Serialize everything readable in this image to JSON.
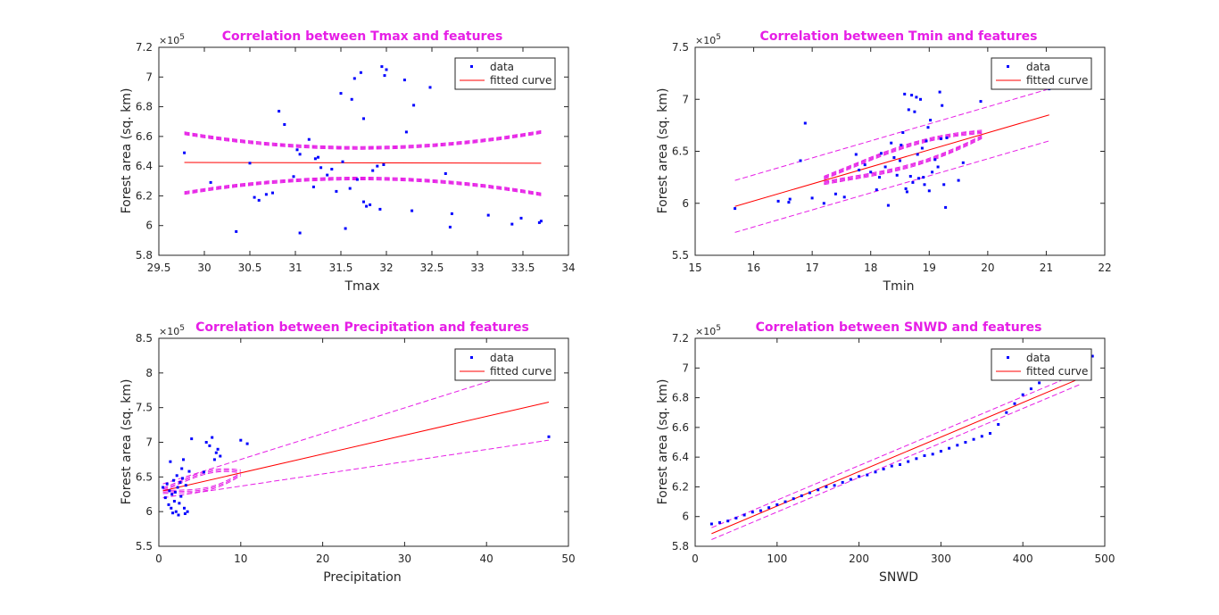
{
  "figure": {
    "background": "#ffffff",
    "title_color": "#e61ee6",
    "data_color": "#0000ff",
    "fit_color": "#ff0000",
    "ci_color": "#e61ee6"
  },
  "chart_data": [
    {
      "id": "tmax",
      "type": "scatter",
      "title": "Correlation between Tmax and features",
      "xlabel": "Tmax",
      "ylabel": "Forest area (sq. km)",
      "exponent_label": "×10",
      "exponent_power": "5",
      "xlim": [
        29.5,
        34
      ],
      "ylim": [
        5.8,
        7.2
      ],
      "xticks": [
        29.5,
        30,
        30.5,
        31,
        31.5,
        32,
        32.5,
        33,
        33.5,
        34
      ],
      "xtick_labels": [
        "29.5",
        "30",
        "30.5",
        "31",
        "31.5",
        "32",
        "32.5",
        "33",
        "33.5",
        "34"
      ],
      "yticks": [
        5.8,
        6,
        6.2,
        6.4,
        6.6,
        6.8,
        7,
        7.2
      ],
      "ytick_labels": [
        "5.8",
        "6",
        "6.2",
        "6.4",
        "6.6",
        "6.8",
        "7",
        "7.2"
      ],
      "legend": {
        "position": "top-right",
        "entries": [
          "data",
          "fitted curve"
        ]
      },
      "points": [
        [
          29.78,
          6.49
        ],
        [
          30.07,
          6.29
        ],
        [
          30.35,
          5.96
        ],
        [
          30.5,
          6.42
        ],
        [
          30.55,
          6.19
        ],
        [
          30.6,
          6.17
        ],
        [
          30.68,
          6.21
        ],
        [
          30.75,
          6.22
        ],
        [
          30.82,
          6.77
        ],
        [
          30.88,
          6.68
        ],
        [
          30.98,
          6.33
        ],
        [
          31.02,
          6.51
        ],
        [
          31.05,
          6.48
        ],
        [
          31.05,
          5.95
        ],
        [
          31.15,
          6.58
        ],
        [
          31.2,
          6.26
        ],
        [
          31.22,
          6.45
        ],
        [
          31.25,
          6.46
        ],
        [
          31.28,
          6.39
        ],
        [
          31.35,
          6.34
        ],
        [
          31.4,
          6.38
        ],
        [
          31.45,
          6.23
        ],
        [
          31.5,
          6.89
        ],
        [
          31.52,
          6.43
        ],
        [
          31.55,
          5.98
        ],
        [
          31.6,
          6.25
        ],
        [
          31.62,
          6.85
        ],
        [
          31.65,
          6.99
        ],
        [
          31.68,
          6.31
        ],
        [
          31.72,
          7.03
        ],
        [
          31.75,
          6.16
        ],
        [
          31.75,
          6.72
        ],
        [
          31.78,
          6.13
        ],
        [
          31.82,
          6.14
        ],
        [
          31.85,
          6.37
        ],
        [
          31.9,
          6.4
        ],
        [
          31.93,
          6.11
        ],
        [
          31.95,
          7.07
        ],
        [
          31.97,
          6.41
        ],
        [
          31.98,
          7.01
        ],
        [
          32.0,
          7.05
        ],
        [
          32.2,
          6.98
        ],
        [
          32.22,
          6.63
        ],
        [
          32.28,
          6.1
        ],
        [
          32.3,
          6.81
        ],
        [
          32.48,
          6.93
        ],
        [
          32.65,
          6.35
        ],
        [
          32.7,
          5.99
        ],
        [
          32.72,
          6.08
        ],
        [
          33.12,
          6.07
        ],
        [
          33.38,
          6.01
        ],
        [
          33.48,
          6.05
        ],
        [
          33.68,
          6.02
        ],
        [
          33.7,
          6.03
        ]
      ],
      "fit": {
        "x": [
          29.78,
          33.7
        ],
        "y": [
          6.425,
          6.42
        ]
      },
      "ci_sets": [
        {
          "center": 31.7,
          "x0": 29.78,
          "x1": 33.7,
          "base": 6.42,
          "half_min": 0.1,
          "curv": 0.0267,
          "offsets": [
            0,
            0.006,
            0.012,
            -0.006
          ]
        }
      ]
    },
    {
      "id": "tmin",
      "type": "scatter",
      "title": "Correlation between Tmin and features",
      "xlabel": "Tmin",
      "ylabel": "Forest area (sq. km)",
      "exponent_label": "×10",
      "exponent_power": "5",
      "xlim": [
        15,
        22
      ],
      "ylim": [
        5.5,
        7.5
      ],
      "xticks": [
        15,
        16,
        17,
        18,
        19,
        20,
        21,
        22
      ],
      "xtick_labels": [
        "15",
        "16",
        "17",
        "18",
        "19",
        "20",
        "21",
        "22"
      ],
      "yticks": [
        5.5,
        6,
        6.5,
        7,
        7.5
      ],
      "ytick_labels": [
        "5.5",
        "6",
        "6.5",
        "7",
        "7.5"
      ],
      "legend": {
        "position": "top-right",
        "entries": [
          "data",
          "fitted curve"
        ]
      },
      "points": [
        [
          15.68,
          5.95
        ],
        [
          16.42,
          6.02
        ],
        [
          16.6,
          6.01
        ],
        [
          16.62,
          6.04
        ],
        [
          16.8,
          6.41
        ],
        [
          16.88,
          6.77
        ],
        [
          17.0,
          6.05
        ],
        [
          17.2,
          6.0
        ],
        [
          17.4,
          6.09
        ],
        [
          17.55,
          6.06
        ],
        [
          17.75,
          6.47
        ],
        [
          17.8,
          6.32
        ],
        [
          17.9,
          6.37
        ],
        [
          18.0,
          6.3
        ],
        [
          18.1,
          6.13
        ],
        [
          18.15,
          6.25
        ],
        [
          18.18,
          6.48
        ],
        [
          18.25,
          6.35
        ],
        [
          18.3,
          5.98
        ],
        [
          18.35,
          6.58
        ],
        [
          18.4,
          6.44
        ],
        [
          18.45,
          6.27
        ],
        [
          18.5,
          6.41
        ],
        [
          18.52,
          6.56
        ],
        [
          18.55,
          6.68
        ],
        [
          18.58,
          7.05
        ],
        [
          18.6,
          6.14
        ],
        [
          18.62,
          6.11
        ],
        [
          18.65,
          6.9
        ],
        [
          18.68,
          6.26
        ],
        [
          18.7,
          7.04
        ],
        [
          18.72,
          6.2
        ],
        [
          18.75,
          6.88
        ],
        [
          18.78,
          7.02
        ],
        [
          18.8,
          6.47
        ],
        [
          18.82,
          6.24
        ],
        [
          18.85,
          7.0
        ],
        [
          18.88,
          6.53
        ],
        [
          18.9,
          6.25
        ],
        [
          18.92,
          6.18
        ],
        [
          18.95,
          6.6
        ],
        [
          18.98,
          6.73
        ],
        [
          19.0,
          6.12
        ],
        [
          19.02,
          6.8
        ],
        [
          19.05,
          6.3
        ],
        [
          19.1,
          6.42
        ],
        [
          19.15,
          6.35
        ],
        [
          19.18,
          7.07
        ],
        [
          19.2,
          6.62
        ],
        [
          19.22,
          6.94
        ],
        [
          19.25,
          6.18
        ],
        [
          19.28,
          5.96
        ],
        [
          19.3,
          6.63
        ],
        [
          19.5,
          6.22
        ],
        [
          19.58,
          6.39
        ],
        [
          19.88,
          6.98
        ],
        [
          21.05,
          7.1
        ]
      ],
      "fit": {
        "x": [
          15.68,
          21.05
        ],
        "y": [
          5.97,
          6.85
        ]
      },
      "ci_sets": [
        {
          "type": "linear",
          "x0": 15.68,
          "x1": 21.05,
          "upper": [
            6.22,
            7.1
          ],
          "lower": [
            5.72,
            6.6
          ]
        },
        {
          "type": "lens",
          "x0": 17.2,
          "x1": 19.9,
          "y_at_x0": 6.22,
          "slope": 0.1639,
          "half_at_x0": 0.09,
          "half_at_x1": 0.18,
          "offsets": [
            0,
            0.01,
            0.02,
            -0.01
          ]
        }
      ]
    },
    {
      "id": "precipitation",
      "type": "scatter",
      "title": "Correlation between Precipitation and features",
      "xlabel": "Precipitation",
      "ylabel": "Forest area (sq. km)",
      "exponent_label": "×10",
      "exponent_power": "5",
      "xlim": [
        0,
        50
      ],
      "ylim": [
        5.5,
        8.5
      ],
      "xticks": [
        0,
        10,
        20,
        30,
        40,
        50
      ],
      "xtick_labels": [
        "0",
        "10",
        "20",
        "30",
        "40",
        "50"
      ],
      "yticks": [
        5.5,
        6,
        6.5,
        7,
        7.5,
        8,
        8.5
      ],
      "ytick_labels": [
        "5.5",
        "6",
        "6.5",
        "7",
        "7.5",
        "8",
        "8.5"
      ],
      "legend": {
        "position": "top-right",
        "entries": [
          "data",
          "fitted curve"
        ]
      },
      "points": [
        [
          0.5,
          6.35
        ],
        [
          0.8,
          6.2
        ],
        [
          1.0,
          6.4
        ],
        [
          1.2,
          6.1
        ],
        [
          1.3,
          6.3
        ],
        [
          1.4,
          6.72
        ],
        [
          1.5,
          6.05
        ],
        [
          1.6,
          6.25
        ],
        [
          1.7,
          5.98
        ],
        [
          1.8,
          6.45
        ],
        [
          1.9,
          6.15
        ],
        [
          2.0,
          6.28
        ],
        [
          2.1,
          6.0
        ],
        [
          2.2,
          6.52
        ],
        [
          2.3,
          6.35
        ],
        [
          2.4,
          5.95
        ],
        [
          2.5,
          6.12
        ],
        [
          2.6,
          6.42
        ],
        [
          2.7,
          6.22
        ],
        [
          2.8,
          6.62
        ],
        [
          2.9,
          6.48
        ],
        [
          3.0,
          6.75
        ],
        [
          3.1,
          6.05
        ],
        [
          3.2,
          5.97
        ],
        [
          3.3,
          6.38
        ],
        [
          3.5,
          6.0
        ],
        [
          3.7,
          6.58
        ],
        [
          4.0,
          7.05
        ],
        [
          5.5,
          6.57
        ],
        [
          5.8,
          7.0
        ],
        [
          6.2,
          6.95
        ],
        [
          6.5,
          7.07
        ],
        [
          6.8,
          6.75
        ],
        [
          7.0,
          6.85
        ],
        [
          7.2,
          6.9
        ],
        [
          7.5,
          6.8
        ],
        [
          10.0,
          7.03
        ],
        [
          10.8,
          6.98
        ],
        [
          47.6,
          7.08
        ]
      ],
      "fit": {
        "x": [
          0.5,
          47.6
        ],
        "y": [
          6.3,
          7.58
        ]
      },
      "ci_sets": [
        {
          "type": "linear",
          "x0": 0.5,
          "x1": 47.6,
          "upper": [
            6.4,
            8.15
          ],
          "lower": [
            6.2,
            7.03
          ]
        },
        {
          "type": "lens",
          "x0": 0.5,
          "x1": 10.0,
          "y_at_x0": 6.3,
          "slope": 0.0272,
          "half_at_x0": 0.1,
          "half_at_x1": 0.25,
          "offsets": [
            0,
            0.02,
            -0.02
          ]
        }
      ]
    },
    {
      "id": "snwd",
      "type": "scatter",
      "title": "Correlation between SNWD and features",
      "xlabel": "SNWD",
      "ylabel": "Forest area (sq. km)",
      "exponent_label": "×10",
      "exponent_power": "5",
      "xlim": [
        0,
        500
      ],
      "ylim": [
        5.8,
        7.2
      ],
      "xticks": [
        0,
        100,
        200,
        300,
        400,
        500
      ],
      "xtick_labels": [
        "0",
        "100",
        "200",
        "300",
        "400",
        "500"
      ],
      "yticks": [
        5.8,
        6,
        6.2,
        6.4,
        6.6,
        6.8,
        7,
        7.2
      ],
      "ytick_labels": [
        "5.8",
        "6",
        "6.2",
        "6.4",
        "6.6",
        "6.8",
        "7",
        "7.2"
      ],
      "legend": {
        "position": "top-right",
        "entries": [
          "data",
          "fitted curve"
        ]
      },
      "points": [
        [
          20,
          5.95
        ],
        [
          30,
          5.96
        ],
        [
          40,
          5.97
        ],
        [
          50,
          5.99
        ],
        [
          60,
          6.01
        ],
        [
          70,
          6.03
        ],
        [
          80,
          6.04
        ],
        [
          90,
          6.06
        ],
        [
          100,
          6.08
        ],
        [
          110,
          6.1
        ],
        [
          120,
          6.12
        ],
        [
          130,
          6.14
        ],
        [
          140,
          6.16
        ],
        [
          150,
          6.18
        ],
        [
          160,
          6.2
        ],
        [
          170,
          6.21
        ],
        [
          180,
          6.23
        ],
        [
          190,
          6.25
        ],
        [
          200,
          6.27
        ],
        [
          210,
          6.28
        ],
        [
          220,
          6.3
        ],
        [
          230,
          6.32
        ],
        [
          240,
          6.34
        ],
        [
          250,
          6.35
        ],
        [
          260,
          6.37
        ],
        [
          270,
          6.39
        ],
        [
          280,
          6.41
        ],
        [
          290,
          6.42
        ],
        [
          300,
          6.44
        ],
        [
          310,
          6.46
        ],
        [
          320,
          6.48
        ],
        [
          330,
          6.5
        ],
        [
          340,
          6.52
        ],
        [
          350,
          6.54
        ],
        [
          360,
          6.56
        ],
        [
          370,
          6.62
        ],
        [
          380,
          6.7
        ],
        [
          390,
          6.76
        ],
        [
          400,
          6.82
        ],
        [
          410,
          6.86
        ],
        [
          420,
          6.9
        ],
        [
          485,
          7.08
        ]
      ],
      "fit": {
        "x": [
          20,
          470
        ],
        "y": [
          5.885,
          6.93
        ]
      },
      "ci_sets": [
        {
          "type": "linear",
          "x0": 20,
          "x1": 470,
          "upper": [
            5.925,
            6.97
          ],
          "lower": [
            5.845,
            6.89
          ]
        }
      ]
    }
  ]
}
